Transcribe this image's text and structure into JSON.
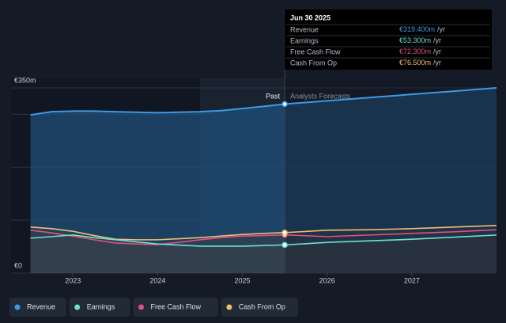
{
  "chart_data": {
    "type": "line",
    "x": [
      2022.5,
      2022.75,
      2023,
      2023.25,
      2023.5,
      2023.75,
      2024,
      2024.25,
      2024.5,
      2024.75,
      2025,
      2025.25,
      2025.5,
      2026,
      2026.5,
      2027,
      2027.5,
      2028
    ],
    "series": [
      {
        "name": "Revenue",
        "color": "#3a9ae8",
        "tooltip_label": "€319.400m",
        "values": [
          299,
          305,
          306,
          306,
          305,
          304,
          303,
          304,
          305,
          307,
          311,
          315,
          319.4,
          325.5,
          331.6,
          337.8,
          343.9,
          350
        ]
      },
      {
        "name": "Earnings",
        "color": "#6ee0d4",
        "tooltip_label": "€53.300m",
        "values": [
          66,
          69,
          72,
          67,
          63,
          59,
          55,
          53,
          51,
          51,
          51,
          52,
          53.3,
          58,
          61,
          64,
          68,
          72
        ]
      },
      {
        "name": "Free Cash Flow",
        "color": "#e0507f",
        "tooltip_label": "€72.300m",
        "values": [
          81,
          76,
          70,
          63,
          57,
          55,
          54,
          58,
          63,
          67,
          70,
          71,
          72.3,
          69,
          72,
          75,
          78,
          82
        ]
      },
      {
        "name": "Cash From Op",
        "color": "#f0c070",
        "tooltip_label": "€76.500m",
        "values": [
          87,
          84,
          79,
          71,
          64,
          63,
          63,
          65,
          67,
          70,
          73,
          75,
          76.5,
          81,
          82,
          84,
          87,
          90
        ]
      }
    ],
    "xlim": [
      2022.27,
      2028
    ],
    "xticks": [
      2023,
      2024,
      2025,
      2026,
      2027
    ],
    "ylim": [
      0,
      350
    ],
    "yticks": [
      {
        "value": 0,
        "label": "€0"
      },
      {
        "value": 350,
        "label": "€350m"
      }
    ],
    "grid_lines": [
      100,
      200,
      300
    ],
    "divider": {
      "x": 2025.5,
      "past_label": "Past",
      "forecast_label": "Analysts Forecasts"
    },
    "highlight_start": 2024.5,
    "tooltip": {
      "title": "Jun 30 2025",
      "unit": "/yr",
      "index": 12
    },
    "legend": "bottom-left"
  }
}
